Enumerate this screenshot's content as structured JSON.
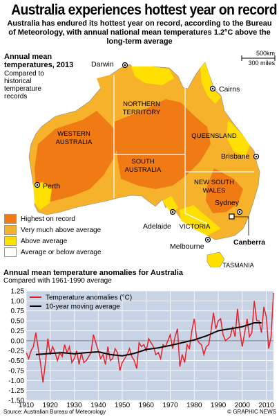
{
  "header": {
    "title": "Australia experiences hottest year on record",
    "subtitle": "Australia has endured its hottest year on record, according to the Bureau of Meteorology, with annual national mean temperatures 1.2°C above the long-term average"
  },
  "map": {
    "title_line1": "Annual mean",
    "title_line2": "temperatures, 2013",
    "sub_line1": "Compared to",
    "sub_line2": "historical",
    "sub_line3": "temperature",
    "sub_line4": "records",
    "scale_km": "500km",
    "scale_mi": "300 miles",
    "regions": {
      "wa": [
        "WESTERN",
        "AUSTRALIA"
      ],
      "nt": [
        "NORTHERN",
        "TERRITORY"
      ],
      "qld": "QUEENSLAND",
      "sa": [
        "SOUTH",
        "AUSTRALIA"
      ],
      "nsw": [
        "NEW SOUTH",
        "WALES"
      ],
      "vic": "VICTORIA",
      "tas": "TASMANIA"
    },
    "cities": {
      "darwin": "Darwin",
      "cairns": "Cairns",
      "brisbane": "Brisbane",
      "perth": "Perth",
      "sydney": "Sydney",
      "adelaide": "Adelaide",
      "melbourne": "Melbourne",
      "canberra": "Canberra"
    },
    "legend": [
      {
        "label": "Highest on record",
        "color": "#f07a14"
      },
      {
        "label": "Very much above average",
        "color": "#f5b22a"
      },
      {
        "label": "Above average",
        "color": "#ffe000"
      },
      {
        "label": "Average or below average",
        "color": "#ffffff"
      }
    ],
    "colors": {
      "land_highest": "#f07a14",
      "land_very": "#f5b22a",
      "land_above": "#ffe000",
      "sea": "#ffffff"
    }
  },
  "graph": {
    "title": "Annual mean temperature anomalies for Australia",
    "subtitle": "Compared with 1961-1990 average"
  },
  "chart_data": {
    "type": "line",
    "title": "Annual mean temperature anomalies for Australia",
    "subtitle": "Compared with 1961-1990 average",
    "xlim": [
      1910,
      2013
    ],
    "ylim": [
      -1.5,
      1.25
    ],
    "xticks": [
      1910,
      1920,
      1930,
      1940,
      1950,
      1960,
      1970,
      1980,
      1990,
      2000,
      2010
    ],
    "yticks": [
      "-1.50",
      "-1.25",
      "-1.00",
      "-0.75",
      "-0.50",
      "-0.25",
      "0.00",
      "0.25",
      "0.50",
      "0.75",
      "1.00",
      "1.25"
    ],
    "grid": true,
    "legend": "top-left",
    "series": [
      {
        "name": "Temperature anomalies (°C)",
        "color": "#e8202a",
        "x": [
          1910,
          1911,
          1912,
          1913,
          1914,
          1915,
          1916,
          1917,
          1918,
          1919,
          1920,
          1921,
          1922,
          1923,
          1924,
          1925,
          1926,
          1927,
          1928,
          1929,
          1930,
          1931,
          1932,
          1933,
          1934,
          1935,
          1936,
          1937,
          1938,
          1939,
          1940,
          1941,
          1942,
          1943,
          1944,
          1945,
          1946,
          1947,
          1948,
          1949,
          1950,
          1951,
          1952,
          1953,
          1954,
          1955,
          1956,
          1957,
          1958,
          1959,
          1960,
          1961,
          1962,
          1963,
          1964,
          1965,
          1966,
          1967,
          1968,
          1969,
          1970,
          1971,
          1972,
          1973,
          1974,
          1975,
          1976,
          1977,
          1978,
          1979,
          1980,
          1981,
          1982,
          1983,
          1984,
          1985,
          1986,
          1987,
          1988,
          1989,
          1990,
          1991,
          1992,
          1993,
          1994,
          1995,
          1996,
          1997,
          1998,
          1999,
          2000,
          2001,
          2002,
          2003,
          2004,
          2005,
          2006,
          2007,
          2008,
          2009,
          2010,
          2011,
          2012,
          2013
        ],
        "values": [
          -0.3,
          -0.45,
          -0.25,
          -0.15,
          0.2,
          -0.2,
          -0.6,
          -1.05,
          -0.55,
          0.05,
          -0.35,
          -0.15,
          -0.3,
          -0.5,
          -0.3,
          -0.4,
          -0.1,
          -0.3,
          -0.15,
          -0.55,
          -0.45,
          -0.25,
          -0.6,
          -0.3,
          -0.55,
          -0.5,
          -0.4,
          -0.3,
          0.15,
          -0.05,
          -0.25,
          -0.45,
          -0.35,
          -0.6,
          -0.15,
          -0.5,
          -0.45,
          -0.2,
          -0.3,
          -0.75,
          -0.55,
          -0.45,
          -0.35,
          -0.2,
          -0.4,
          -0.5,
          -0.7,
          -0.05,
          -0.15,
          -0.1,
          -0.25,
          0.05,
          -0.05,
          -0.15,
          -0.35,
          -0.3,
          -0.45,
          -0.1,
          -0.15,
          0.0,
          0.15,
          -0.2,
          0.1,
          0.3,
          -0.65,
          -0.35,
          -0.55,
          -0.1,
          -0.2,
          0.25,
          0.55,
          0.05,
          -0.05,
          -0.1,
          -0.35,
          -0.15,
          -0.1,
          0.25,
          0.7,
          0.3,
          0.5,
          0.55,
          0.15,
          0.0,
          0.05,
          0.1,
          0.35,
          0.1,
          0.8,
          0.25,
          -0.15,
          0.2,
          0.55,
          0.1,
          0.2,
          1.0,
          0.5,
          0.5,
          0.2,
          0.85,
          0.6,
          -0.2,
          0.1,
          1.2
        ]
      },
      {
        "name": "10-year moving average",
        "color": "#000000",
        "x": [
          1914,
          1920,
          1925,
          1930,
          1935,
          1940,
          1945,
          1950,
          1955,
          1960,
          1965,
          1970,
          1975,
          1980,
          1985,
          1990,
          1995,
          2000,
          2005,
          2008
        ],
        "values": [
          -0.35,
          -0.32,
          -0.3,
          -0.33,
          -0.3,
          -0.28,
          -0.35,
          -0.38,
          -0.32,
          -0.22,
          -0.18,
          -0.12,
          -0.05,
          0.02,
          0.12,
          0.25,
          0.3,
          0.35,
          0.45,
          0.45
        ]
      }
    ]
  },
  "footer": {
    "source": "Source: Australian Bureau of Meteorology",
    "credit": "© GRAPHIC NEWS"
  }
}
